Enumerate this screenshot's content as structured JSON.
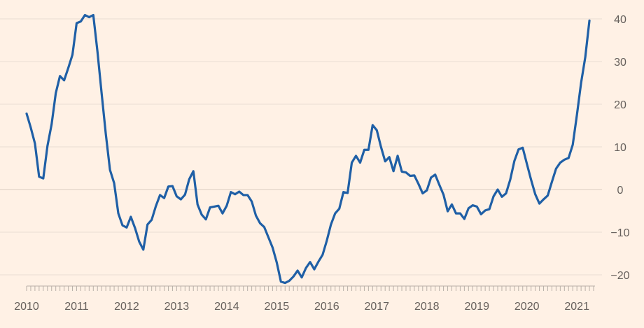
{
  "chart_data": {
    "type": "line",
    "title": "",
    "xlabel": "",
    "ylabel": "",
    "x_ticks": [
      "2010",
      "2011",
      "2012",
      "2013",
      "2014",
      "2015",
      "2016",
      "2017",
      "2018",
      "2019",
      "2020",
      "2021"
    ],
    "y_ticks": [
      40,
      30,
      20,
      10,
      0,
      -10,
      -20
    ],
    "xlim": [
      "2010-01",
      "2021-05"
    ],
    "ylim": [
      -22.5,
      42
    ],
    "grid": true,
    "y_axis_side": "right",
    "legend": "none",
    "colors": {
      "series": "#1F5FA6",
      "background": "#FFF1E5",
      "grid": "#E9DDD2",
      "text": "#66605C"
    },
    "series": [
      {
        "points": [
          [
            "2010-01",
            17.8
          ],
          [
            "2010-02",
            14.5
          ],
          [
            "2010-03",
            10.8
          ],
          [
            "2010-04",
            3.0
          ],
          [
            "2010-05",
            2.6
          ],
          [
            "2010-06",
            10.2
          ],
          [
            "2010-07",
            15.3
          ],
          [
            "2010-08",
            22.6
          ],
          [
            "2010-09",
            26.6
          ],
          [
            "2010-10",
            25.6
          ],
          [
            "2010-11",
            28.5
          ],
          [
            "2010-12",
            31.6
          ],
          [
            "2011-01",
            39.0
          ],
          [
            "2011-02",
            39.4
          ],
          [
            "2011-03",
            40.9
          ],
          [
            "2011-04",
            40.4
          ],
          [
            "2011-05",
            40.9
          ],
          [
            "2011-06",
            32.3
          ],
          [
            "2011-07",
            22.5
          ],
          [
            "2011-08",
            13.0
          ],
          [
            "2011-09",
            4.6
          ],
          [
            "2011-10",
            1.5
          ],
          [
            "2011-11",
            -5.6
          ],
          [
            "2011-12",
            -8.4
          ],
          [
            "2012-01",
            -8.9
          ],
          [
            "2012-02",
            -6.4
          ],
          [
            "2012-03",
            -9.0
          ],
          [
            "2012-04",
            -12.2
          ],
          [
            "2012-05",
            -14.1
          ],
          [
            "2012-06",
            -8.2
          ],
          [
            "2012-07",
            -7.1
          ],
          [
            "2012-08",
            -3.9
          ],
          [
            "2012-09",
            -1.3
          ],
          [
            "2012-10",
            -2.0
          ],
          [
            "2012-11",
            0.7
          ],
          [
            "2012-12",
            0.8
          ],
          [
            "2013-01",
            -1.6
          ],
          [
            "2013-02",
            -2.3
          ],
          [
            "2013-03",
            -1.2
          ],
          [
            "2013-04",
            2.4
          ],
          [
            "2013-05",
            4.3
          ],
          [
            "2013-06",
            -3.5
          ],
          [
            "2013-07",
            -5.9
          ],
          [
            "2013-08",
            -7.0
          ],
          [
            "2013-09",
            -4.2
          ],
          [
            "2013-10",
            -4.0
          ],
          [
            "2013-11",
            -3.8
          ],
          [
            "2013-12",
            -5.6
          ],
          [
            "2014-01",
            -3.8
          ],
          [
            "2014-02",
            -0.6
          ],
          [
            "2014-03",
            -1.1
          ],
          [
            "2014-04",
            -0.5
          ],
          [
            "2014-05",
            -1.3
          ],
          [
            "2014-06",
            -1.3
          ],
          [
            "2014-07",
            -2.8
          ],
          [
            "2014-08",
            -6.1
          ],
          [
            "2014-09",
            -7.9
          ],
          [
            "2014-10",
            -8.8
          ],
          [
            "2014-11",
            -11.2
          ],
          [
            "2014-12",
            -13.6
          ],
          [
            "2015-01",
            -17.1
          ],
          [
            "2015-02",
            -21.6
          ],
          [
            "2015-03",
            -21.9
          ],
          [
            "2015-04",
            -21.4
          ],
          [
            "2015-05",
            -20.4
          ],
          [
            "2015-06",
            -19.0
          ],
          [
            "2015-07",
            -20.6
          ],
          [
            "2015-08",
            -18.4
          ],
          [
            "2015-09",
            -17.0
          ],
          [
            "2015-10",
            -18.7
          ],
          [
            "2015-11",
            -16.9
          ],
          [
            "2015-12",
            -15.3
          ],
          [
            "2016-01",
            -12.0
          ],
          [
            "2016-02",
            -8.2
          ],
          [
            "2016-03",
            -5.6
          ],
          [
            "2016-04",
            -4.5
          ],
          [
            "2016-05",
            -0.6
          ],
          [
            "2016-06",
            -0.8
          ],
          [
            "2016-07",
            6.3
          ],
          [
            "2016-08",
            7.9
          ],
          [
            "2016-09",
            6.3
          ],
          [
            "2016-10",
            9.3
          ],
          [
            "2016-11",
            9.3
          ],
          [
            "2016-12",
            15.1
          ],
          [
            "2017-01",
            13.9
          ],
          [
            "2017-02",
            10.0
          ],
          [
            "2017-03",
            6.6
          ],
          [
            "2017-04",
            7.6
          ],
          [
            "2017-05",
            4.3
          ],
          [
            "2017-06",
            7.9
          ],
          [
            "2017-07",
            4.2
          ],
          [
            "2017-08",
            4.0
          ],
          [
            "2017-09",
            3.2
          ],
          [
            "2017-10",
            3.3
          ],
          [
            "2017-11",
            1.3
          ],
          [
            "2017-12",
            -0.9
          ],
          [
            "2018-01",
            -0.2
          ],
          [
            "2018-02",
            2.8
          ],
          [
            "2018-03",
            3.5
          ],
          [
            "2018-04",
            1.1
          ],
          [
            "2018-05",
            -1.2
          ],
          [
            "2018-06",
            -5.1
          ],
          [
            "2018-07",
            -3.5
          ],
          [
            "2018-08",
            -5.6
          ],
          [
            "2018-09",
            -5.6
          ],
          [
            "2018-10",
            -6.9
          ],
          [
            "2018-11",
            -4.4
          ],
          [
            "2018-12",
            -3.7
          ],
          [
            "2019-01",
            -4.0
          ],
          [
            "2019-02",
            -5.8
          ],
          [
            "2019-03",
            -4.9
          ],
          [
            "2019-04",
            -4.6
          ],
          [
            "2019-05",
            -1.6
          ],
          [
            "2019-06",
            0.0
          ],
          [
            "2019-07",
            -1.7
          ],
          [
            "2019-08",
            -0.9
          ],
          [
            "2019-09",
            2.3
          ],
          [
            "2019-10",
            6.7
          ],
          [
            "2019-11",
            9.4
          ],
          [
            "2019-12",
            9.8
          ],
          [
            "2020-01",
            6.0
          ],
          [
            "2020-02",
            2.3
          ],
          [
            "2020-03",
            -1.1
          ],
          [
            "2020-04",
            -3.3
          ],
          [
            "2020-05",
            -2.3
          ],
          [
            "2020-06",
            -1.4
          ],
          [
            "2020-07",
            1.8
          ],
          [
            "2020-08",
            4.9
          ],
          [
            "2020-09",
            6.3
          ],
          [
            "2020-10",
            7.0
          ],
          [
            "2020-11",
            7.4
          ],
          [
            "2020-12",
            10.5
          ],
          [
            "2021-01",
            17.5
          ],
          [
            "2021-02",
            25.0
          ],
          [
            "2021-03",
            31.0
          ],
          [
            "2021-04",
            39.6
          ]
        ]
      }
    ]
  }
}
